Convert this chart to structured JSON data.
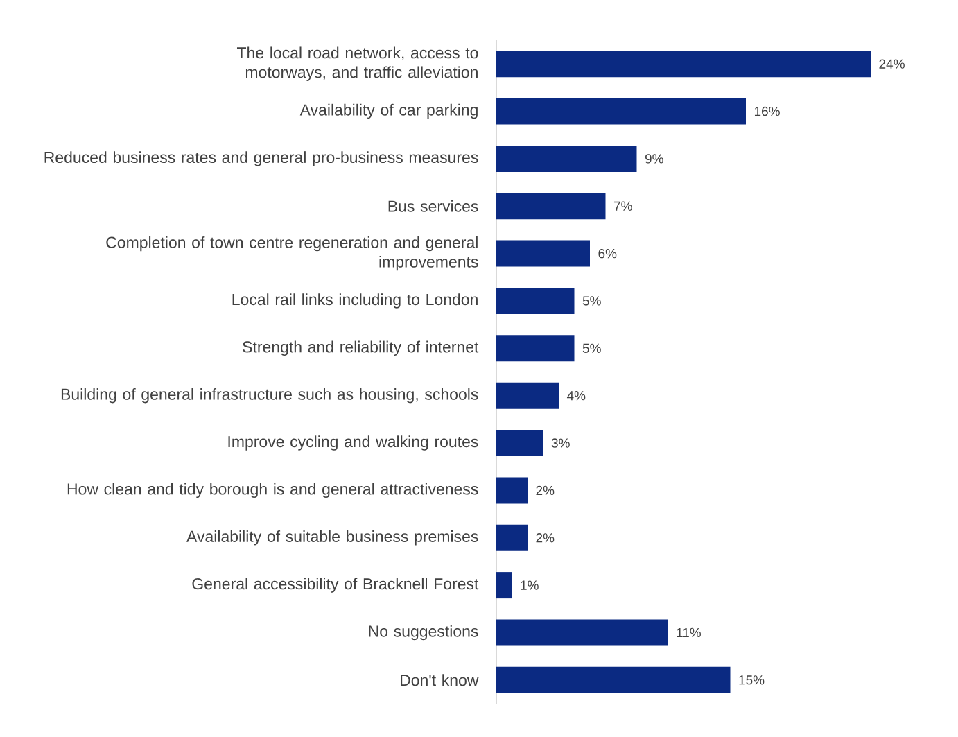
{
  "chart_data": {
    "type": "bar",
    "orientation": "horizontal",
    "color": "#0b2a82",
    "categories": [
      "The local road network, access to motorways, and traffic alleviation",
      "Availability of car parking",
      "Reduced business rates and general pro-business measures",
      "Bus services",
      "Completion of town centre regeneration and general improvements",
      "Local rail links including to London",
      "Strength and reliability of internet",
      "Building of general infrastructure such as housing, schools",
      "Improve cycling and walking routes",
      "How clean and tidy borough is and general attractiveness",
      "Availability of suitable business premises",
      "General accessibility of Bracknell Forest",
      "No suggestions",
      "Don't know"
    ],
    "values": [
      24,
      16,
      9,
      7,
      6,
      5,
      5,
      4,
      3,
      2,
      2,
      1,
      11,
      15
    ],
    "value_labels": [
      "24%",
      "16%",
      "9%",
      "7%",
      "6%",
      "5%",
      "5%",
      "4%",
      "3%",
      "2%",
      "2%",
      "1%",
      "11%",
      "15%"
    ],
    "tick_labels": "y"
  }
}
